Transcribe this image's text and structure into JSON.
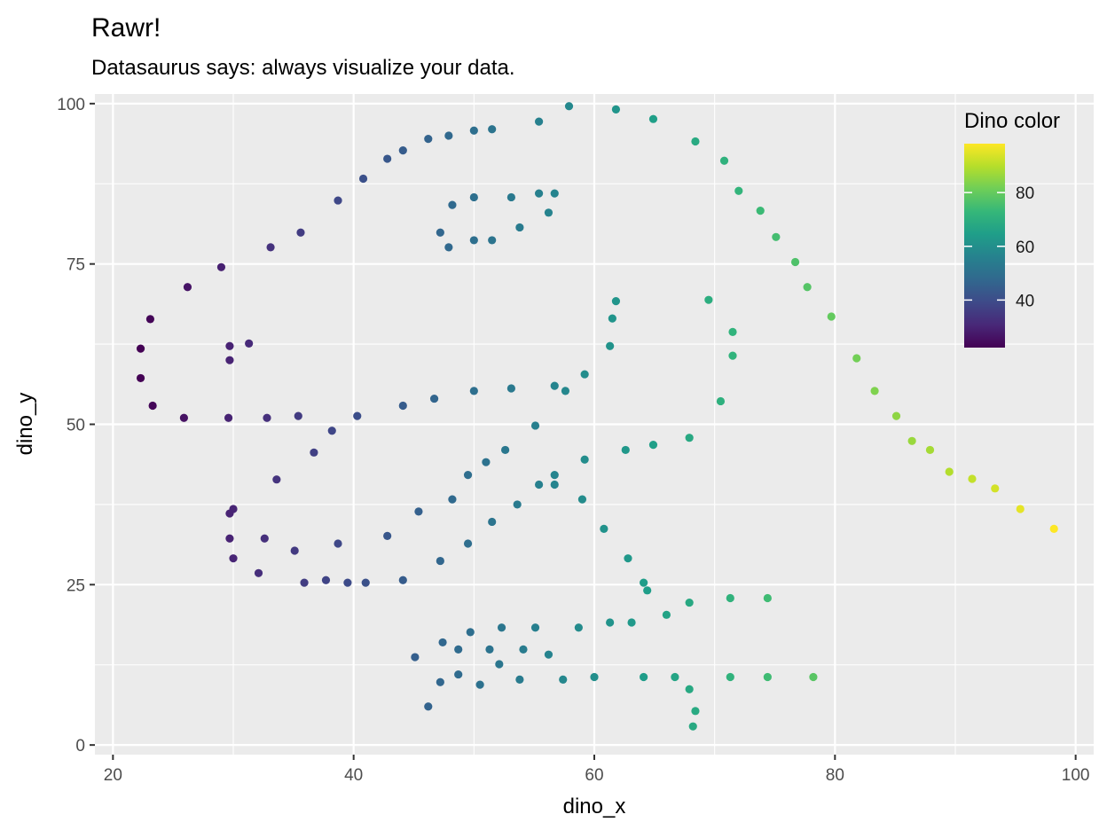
{
  "chart_data": {
    "type": "scatter",
    "title": "Rawr!",
    "subtitle": "Datasaurus says: always visualize your data.",
    "xlabel": "dino_x",
    "ylabel": "dino_y",
    "xlim": [
      18.5,
      101.5
    ],
    "ylim": [
      -1.5,
      101.5
    ],
    "x_ticks": [
      20,
      40,
      60,
      80,
      100
    ],
    "y_ticks": [
      0,
      25,
      50,
      75,
      100
    ],
    "grid": true,
    "legend": {
      "title": "Dino color",
      "position": "top-right",
      "min": 22.3,
      "max": 98.2,
      "ticks": [
        40,
        60,
        80
      ]
    },
    "color_scale": [
      "#440154",
      "#482878",
      "#3e4a89",
      "#31688e",
      "#26828e",
      "#1f9e89",
      "#35b779",
      "#6ece58",
      "#b5de2b",
      "#fde725"
    ],
    "color_by": "dino_x",
    "points": [
      [
        55.4,
        97.2
      ],
      [
        51.5,
        96.0
      ],
      [
        46.2,
        94.5
      ],
      [
        42.8,
        91.4
      ],
      [
        40.8,
        88.3
      ],
      [
        38.7,
        84.9
      ],
      [
        35.6,
        79.9
      ],
      [
        33.1,
        77.6
      ],
      [
        29.0,
        74.5
      ],
      [
        26.2,
        71.4
      ],
      [
        23.1,
        66.4
      ],
      [
        22.3,
        61.8
      ],
      [
        22.3,
        57.2
      ],
      [
        23.3,
        52.9
      ],
      [
        25.9,
        51.0
      ],
      [
        29.6,
        51.0
      ],
      [
        32.8,
        51.0
      ],
      [
        35.4,
        51.3
      ],
      [
        40.3,
        51.3
      ],
      [
        44.1,
        52.9
      ],
      [
        46.7,
        54.0
      ],
      [
        50.0,
        55.2
      ],
      [
        53.1,
        55.6
      ],
      [
        56.7,
        56.0
      ],
      [
        59.2,
        57.8
      ],
      [
        61.3,
        62.2
      ],
      [
        61.5,
        66.5
      ],
      [
        61.8,
        69.2
      ],
      [
        57.9,
        99.6
      ],
      [
        61.8,
        99.1
      ],
      [
        64.9,
        97.6
      ],
      [
        68.4,
        94.1
      ],
      [
        70.8,
        91.1
      ],
      [
        72.0,
        86.4
      ],
      [
        73.8,
        83.3
      ],
      [
        75.1,
        79.2
      ],
      [
        76.7,
        75.3
      ],
      [
        77.7,
        71.4
      ],
      [
        79.7,
        66.8
      ],
      [
        81.8,
        60.3
      ],
      [
        83.3,
        55.2
      ],
      [
        85.1,
        51.3
      ],
      [
        86.4,
        47.4
      ],
      [
        87.9,
        46.0
      ],
      [
        89.5,
        42.6
      ],
      [
        91.4,
        41.5
      ],
      [
        93.3,
        40.0
      ],
      [
        95.4,
        36.8
      ],
      [
        98.2,
        33.7
      ],
      [
        29.7,
        60.0
      ],
      [
        29.7,
        62.2
      ],
      [
        31.3,
        62.6
      ],
      [
        44.1,
        92.7
      ],
      [
        47.9,
        95.0
      ],
      [
        50.0,
        95.8
      ],
      [
        47.2,
        79.9
      ],
      [
        47.9,
        77.6
      ],
      [
        50.0,
        78.7
      ],
      [
        51.5,
        78.7
      ],
      [
        48.2,
        84.2
      ],
      [
        50.0,
        85.4
      ],
      [
        53.1,
        85.4
      ],
      [
        55.4,
        86.0
      ],
      [
        56.7,
        86.0
      ],
      [
        56.2,
        83.0
      ],
      [
        53.8,
        80.7
      ],
      [
        38.2,
        49.0
      ],
      [
        36.7,
        45.6
      ],
      [
        33.6,
        41.4
      ],
      [
        30.0,
        36.8
      ],
      [
        29.7,
        36.1
      ],
      [
        29.7,
        32.2
      ],
      [
        30.0,
        29.1
      ],
      [
        32.1,
        26.8
      ],
      [
        35.9,
        25.3
      ],
      [
        37.7,
        25.7
      ],
      [
        39.5,
        25.3
      ],
      [
        41.0,
        25.3
      ],
      [
        44.1,
        25.7
      ],
      [
        32.6,
        32.2
      ],
      [
        35.1,
        30.3
      ],
      [
        38.7,
        31.4
      ],
      [
        42.8,
        32.6
      ],
      [
        45.4,
        36.4
      ],
      [
        47.2,
        28.7
      ],
      [
        48.2,
        38.3
      ],
      [
        49.5,
        42.1
      ],
      [
        51.0,
        44.1
      ],
      [
        52.6,
        46.0
      ],
      [
        55.1,
        49.8
      ],
      [
        49.5,
        31.4
      ],
      [
        51.5,
        34.8
      ],
      [
        53.6,
        37.5
      ],
      [
        55.4,
        40.6
      ],
      [
        56.7,
        40.6
      ],
      [
        56.7,
        42.1
      ],
      [
        59.2,
        44.5
      ],
      [
        59.0,
        38.3
      ],
      [
        60.8,
        33.7
      ],
      [
        62.8,
        29.1
      ],
      [
        64.1,
        25.3
      ],
      [
        64.4,
        24.1
      ],
      [
        66.0,
        20.3
      ],
      [
        67.9,
        22.2
      ],
      [
        71.3,
        22.9
      ],
      [
        74.4,
        22.9
      ],
      [
        63.1,
        19.1
      ],
      [
        61.3,
        19.1
      ],
      [
        57.6,
        55.2
      ],
      [
        62.6,
        46.0
      ],
      [
        64.9,
        46.8
      ],
      [
        67.9,
        47.9
      ],
      [
        70.5,
        53.6
      ],
      [
        71.5,
        60.7
      ],
      [
        71.5,
        64.4
      ],
      [
        69.5,
        69.4
      ],
      [
        45.1,
        13.7
      ],
      [
        46.2,
        6.0
      ],
      [
        47.2,
        9.8
      ],
      [
        47.4,
        16.0
      ],
      [
        48.7,
        14.9
      ],
      [
        48.7,
        11.0
      ],
      [
        49.7,
        17.6
      ],
      [
        50.5,
        9.4
      ],
      [
        51.3,
        14.9
      ],
      [
        52.1,
        12.6
      ],
      [
        52.3,
        18.3
      ],
      [
        53.8,
        10.2
      ],
      [
        54.1,
        14.9
      ],
      [
        55.1,
        18.3
      ],
      [
        56.2,
        14.1
      ],
      [
        57.4,
        10.2
      ],
      [
        58.7,
        18.3
      ],
      [
        60.0,
        10.6
      ],
      [
        64.1,
        10.6
      ],
      [
        66.7,
        10.6
      ],
      [
        67.9,
        8.7
      ],
      [
        68.4,
        5.3
      ],
      [
        68.2,
        2.9
      ],
      [
        71.3,
        10.6
      ],
      [
        74.4,
        10.6
      ],
      [
        78.2,
        10.6
      ]
    ]
  }
}
